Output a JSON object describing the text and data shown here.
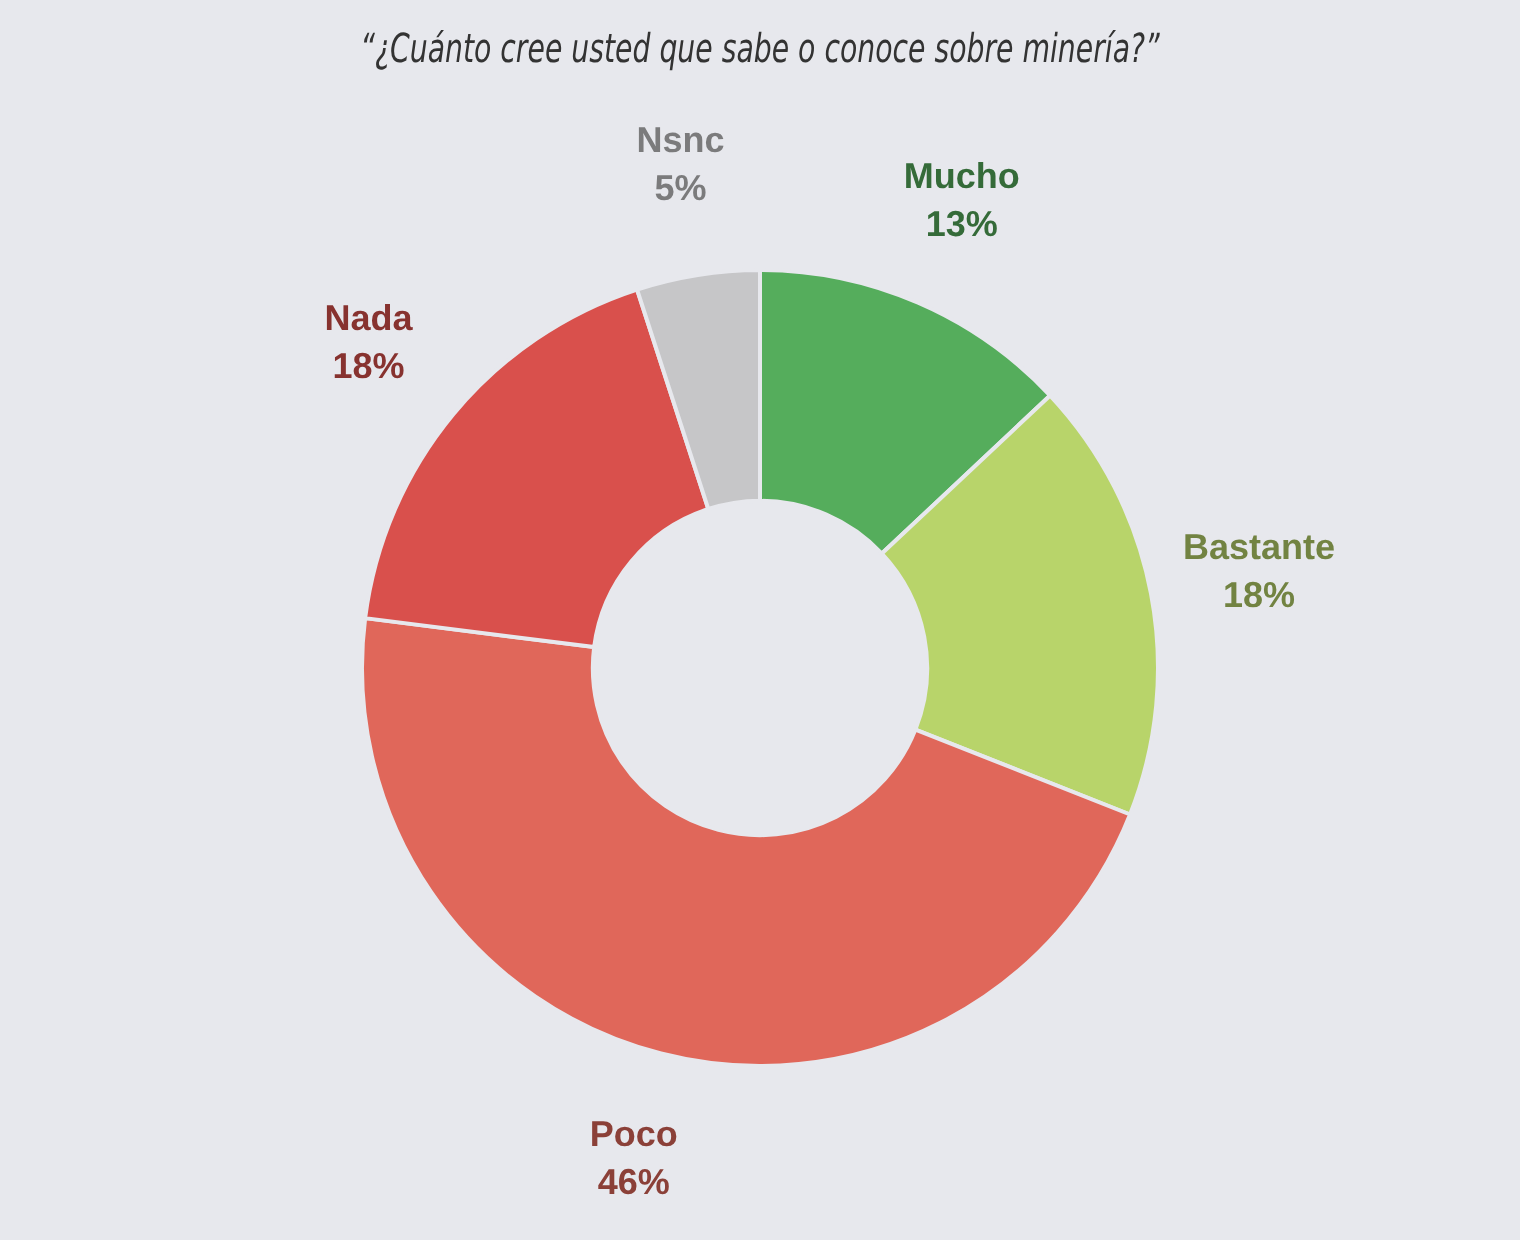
{
  "chart_data": {
    "type": "donut",
    "title": "“¿Cuánto cree usted que sabe o conoce sobre minería?”",
    "categories": [
      "Mucho",
      "Bastante",
      "Poco",
      "Nada",
      "Nsnc"
    ],
    "values": [
      13,
      18,
      46,
      18,
      5
    ],
    "colors": [
      "#55ad5c",
      "#b8d46a",
      "#e0675a",
      "#d9504c",
      "#c6c6c8"
    ],
    "value_labels": [
      "13%",
      "18%",
      "46%",
      "18%",
      "5%"
    ],
    "legend": false
  }
}
